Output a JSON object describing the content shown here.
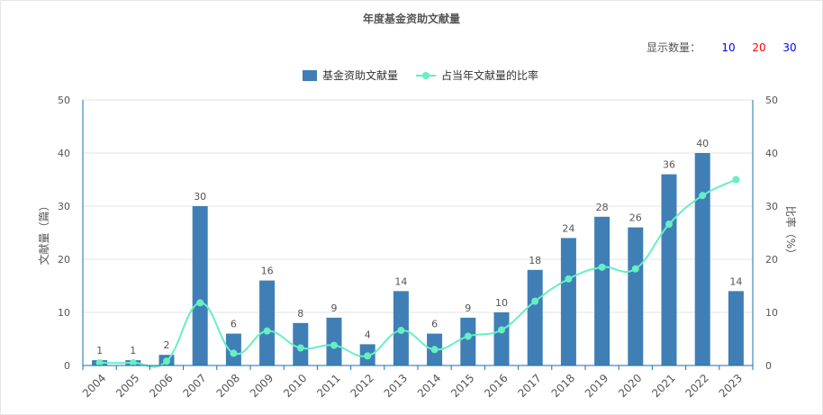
{
  "title": "年度基金资助文献量",
  "count_selector": {
    "label": "显示数量：",
    "options": [
      {
        "label": "10",
        "color": "#0000ff"
      },
      {
        "label": "20",
        "color": "#ff0000"
      },
      {
        "label": "30",
        "color": "#0000ff"
      }
    ]
  },
  "colors": {
    "bar": "#3f7fb5",
    "line": "#66efc3",
    "axis": "#1a6fad",
    "grid": "#e3e3e3",
    "text": "#555555"
  },
  "chart_data": {
    "type": "bar",
    "categories": [
      "2004",
      "2005",
      "2006",
      "2007",
      "2008",
      "2009",
      "2010",
      "2011",
      "2012",
      "2013",
      "2014",
      "2015",
      "2016",
      "2017",
      "2018",
      "2019",
      "2020",
      "2021",
      "2022",
      "2023"
    ],
    "series": [
      {
        "name": "基金资助文献量",
        "type": "bar",
        "axis": "left",
        "values": [
          1,
          1,
          2,
          30,
          6,
          16,
          8,
          9,
          4,
          14,
          6,
          9,
          10,
          18,
          24,
          28,
          26,
          36,
          40,
          14
        ]
      },
      {
        "name": "占当年文献量的比率",
        "type": "line",
        "axis": "right",
        "values": [
          0.5,
          0.5,
          0.8,
          11.8,
          2.3,
          6.5,
          3.3,
          3.8,
          1.8,
          6.6,
          3.0,
          5.5,
          6.7,
          12.1,
          16.3,
          18.5,
          18.2,
          26.6,
          32.0,
          35.0
        ]
      }
    ],
    "ylabel": "文献量（篇）",
    "ylabel_right": "比率（%）",
    "ylim": [
      0,
      50
    ],
    "ylim_right": [
      0,
      50
    ],
    "yticks": [
      0,
      10,
      20,
      30,
      40,
      50
    ],
    "grid": true,
    "legend": "top-center"
  }
}
